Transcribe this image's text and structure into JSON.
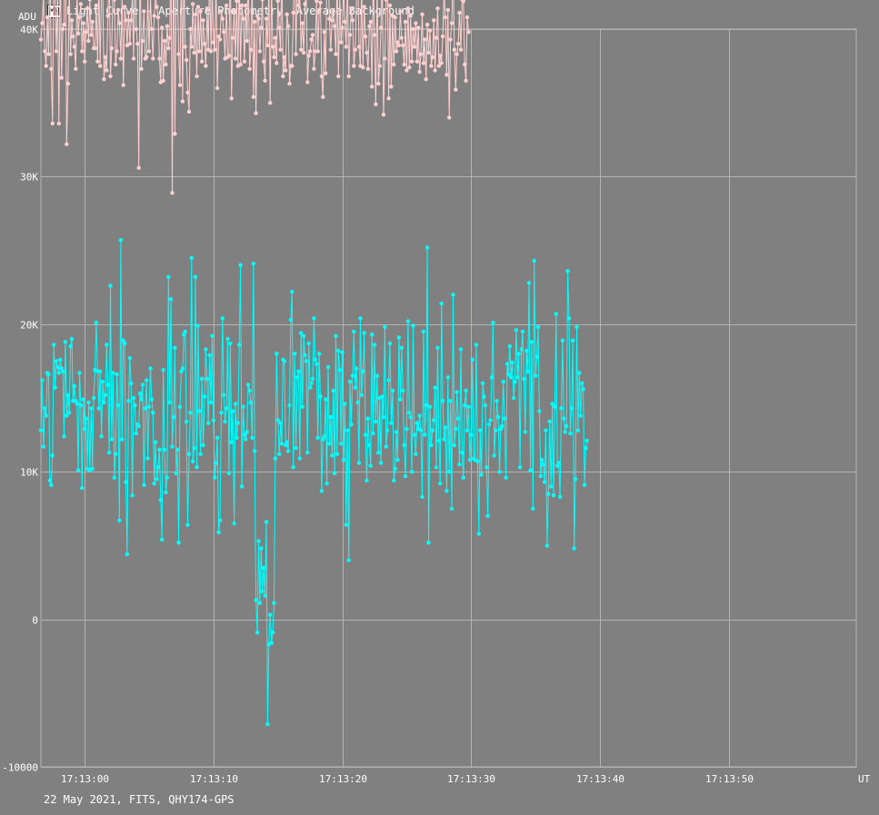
{
  "window": {
    "title": "Light Curve - Aperture Photometry, Average Background",
    "icon": "light-curve-app-icon"
  },
  "footer": {
    "caption": "22 May 2021, FITS, QHY174-GPS"
  },
  "colors": {
    "background": "#808080",
    "grid": "#b4b4b4",
    "target_series": "#00ffff",
    "comparison_series": "#ffd0d0"
  },
  "chart_data": {
    "type": "line",
    "ylabel": "ADU",
    "xlabel": "UT",
    "ylim": [
      -10000,
      40000
    ],
    "xlim": [
      "17:12:56.6",
      "17:13:59.9"
    ],
    "yticks": [
      {
        "value": 40000,
        "label": "40K"
      },
      {
        "value": 30000,
        "label": "30K"
      },
      {
        "value": 20000,
        "label": "20K"
      },
      {
        "value": 10000,
        "label": "10K"
      },
      {
        "value": 0,
        "label": "0"
      },
      {
        "value": -10000,
        "label": "-10000"
      }
    ],
    "xticks": [
      "17:13:00",
      "17:13:10",
      "17:13:20",
      "17:13:30",
      "17:13:40",
      "17:13:50"
    ],
    "grid": true,
    "sample_interval_s": 0.1,
    "series": [
      {
        "role": "comparison",
        "values": [
          39300,
          40400,
          42200,
          38500,
          37500,
          40800,
          38300,
          45600,
          37300,
          33600,
          44100,
          42100,
          38500,
          42400,
          33600,
          44800,
          36700,
          40000,
          40300,
          48800,
          32200,
          36300,
          42700,
          38300,
          40600,
          39500,
          38800,
          37300,
          42400,
          39700,
          40800,
          41700,
          38500,
          40400,
          37800,
          39800,
          41400,
          39200,
          42000,
          39600,
          40500,
          38700,
          38700,
          41600,
          37800,
          43500,
          37500,
          42400,
          42600,
          36600,
          38100,
          37200,
          40900,
          44100,
          36800,
          38700,
          43100,
          42000,
          37600,
          38500,
          41300,
          40400,
          38000,
          42300,
          36200,
          41500,
          40600,
          38900,
          41100,
          39000,
          40600,
          42100,
          38000,
          45400,
          40000,
          39000,
          30600,
          46300,
          37300,
          39200,
          41200,
          38000,
          38100,
          42200,
          38500,
          42100,
          40000,
          38000,
          40900,
          42200,
          41500,
          40800,
          38000,
          36400,
          40100,
          36500,
          39200,
          37600,
          40200,
          38700,
          39400,
          45200,
          28900,
          48200,
          32900,
          42900,
          42800,
          38300,
          36200,
          44600,
          35100,
          44600,
          38800,
          37900,
          35700,
          34400,
          40000,
          38800,
          41700,
          38400,
          41000,
          36800,
          41500,
          38500,
          41200,
          37800,
          40600,
          39000,
          37500,
          41400,
          38600,
          44300,
          38500,
          42600,
          39100,
          38600,
          43500,
          36000,
          39500,
          39300,
          41200,
          40700,
          39800,
          38000,
          41600,
          38100,
          38200,
          45200,
          35300,
          39400,
          41200,
          38000,
          41900,
          37500,
          43700,
          37600,
          41600,
          40700,
          37800,
          41600,
          39200,
          44000,
          37300,
          38600,
          43200,
          35400,
          40500,
          34300,
          40900,
          40700,
          38500,
          40100,
          42000,
          37800,
          36500,
          40700,
          38900,
          43000,
          35000,
          42800,
          38800,
          38100,
          39400,
          37700,
          41900,
          40100,
          38600,
          44900,
          36800,
          38100,
          37200,
          41000,
          40200,
          36300,
          37500,
          37500,
          41100,
          44700,
          38300,
          43900,
          41600,
          42100,
          38600,
          40400,
          38400,
          41700,
          42300,
          36400,
          38200,
          38500,
          39300,
          39600,
          37300,
          38500,
          41900,
          38500,
          41200,
          41800,
          36800,
          35400,
          39800,
          37000,
          43700,
          43900,
          40700,
          38600,
          40600,
          41200,
          40200,
          38300,
          43600,
          36800,
          42200,
          39100,
          40100,
          42800,
          40500,
          38800,
          43300,
          36800,
          39600,
          41400,
          40600,
          37500,
          38600,
          42100,
          44000,
          38800,
          37500,
          42900,
          37400,
          41500,
          39500,
          38400,
          37300,
          40200,
          40500,
          36100,
          43900,
          39600,
          34900,
          43000,
          36300,
          37500,
          40100,
          43800,
          34200,
          38000,
          42000,
          43600,
          35300,
          41600,
          36100,
          40900,
          37600,
          40800,
          38500,
          39100,
          38900,
          41200,
          39400,
          38900,
          37600,
          40500,
          37200,
          41400,
          37400,
          40900,
          37800,
          40000,
          38800,
          40400,
          37800,
          40100,
          37100,
          38300,
          41000,
          37700,
          39300,
          36600,
          40300,
          38400,
          39900,
          37500,
          38100,
          40600,
          37200,
          39400,
          41400,
          37500,
          38200,
          37700,
          39500,
          42500,
          40800,
          36900,
          41300,
          34000,
          39300,
          40400,
          43900,
          38600,
          35900,
          38300,
          39000,
          41100,
          38600,
          42000,
          41900,
          37600,
          36500,
          40800,
          39800
        ],
        "color": "#ffd0d0"
      },
      {
        "role": "target",
        "values": [
          12800,
          16200,
          11700,
          14300,
          13800,
          16700,
          16600,
          9400,
          9100,
          11100,
          18600,
          15700,
          17500,
          17100,
          16700,
          17600,
          17000,
          16800,
          12400,
          18800,
          13800,
          15200,
          14000,
          18500,
          19000,
          14800,
          15800,
          14800,
          14600,
          10100,
          16700,
          14500,
          8900,
          14900,
          12900,
          13600,
          10200,
          14700,
          10100,
          14300,
          10200,
          15000,
          16900,
          20100,
          16800,
          14300,
          16800,
          12400,
          16100,
          14700,
          15200,
          18600,
          15900,
          11300,
          22600,
          12200,
          16700,
          9600,
          11200,
          16600,
          14500,
          6700,
          25700,
          12200,
          18900,
          18700,
          9300,
          4400,
          14800,
          17700,
          16000,
          8400,
          15000,
          14500,
          12600,
          13200,
          13100,
          15300,
          14900,
          15900,
          9100,
          14300,
          16200,
          10900,
          14400,
          17000,
          14900,
          14000,
          9200,
          12000,
          9500,
          10300,
          11500,
          8100,
          5400,
          16900,
          11500,
          8600,
          9600,
          23200,
          14700,
          21700,
          11700,
          13700,
          18400,
          9900,
          11500,
          5200,
          14400,
          16800,
          17000,
          19300,
          19500,
          13400,
          6400,
          11200,
          14000,
          24500,
          10700,
          11600,
          23200,
          10300,
          19900,
          14100,
          11200,
          16300,
          11800,
          15100,
          18300,
          16300,
          13300,
          17900,
          14700,
          19200,
          13500,
          9600,
          10600,
          12300,
          5900,
          6700,
          14000,
          20400,
          15200,
          13400,
          14300,
          19000,
          9900,
          18700,
          12000,
          14100,
          6500,
          14600,
          12300,
          13300,
          18600,
          24000,
          9000,
          14400,
          12500,
          12200,
          12700,
          15900,
          15500,
          14700,
          12300,
          24100,
          11400,
          1300,
          -900,
          5300,
          1100,
          4800,
          1900,
          3500,
          1600,
          6600,
          -7100,
          -1700,
          300,
          -1600,
          -900,
          1100,
          10900,
          18000,
          13500,
          11200,
          13300,
          11900,
          17600,
          17500,
          11800,
          12000,
          11400,
          14500,
          20300,
          22200,
          10300,
          18000,
          11600,
          16400,
          16800,
          10900,
          19400,
          14400,
          19200,
          17900,
          17500,
          11300,
          18700,
          15700,
          16000,
          16300,
          20400,
          17600,
          17300,
          12300,
          18000,
          15100,
          8700,
          12200,
          12400,
          14900,
          9200,
          17100,
          11900,
          13700,
          11100,
          15500,
          9900,
          19200,
          11200,
          18200,
          16900,
          11900,
          18100,
          10800,
          14600,
          6400,
          12800,
          4000,
          16100,
          13200,
          16500,
          19500,
          15700,
          17000,
          14700,
          10600,
          20400,
          15200,
          16800,
          19400,
          12500,
          9400,
          13600,
          11800,
          10400,
          19300,
          12600,
          18600,
          13400,
          16500,
          11300,
          15000,
          10600,
          15100,
          13700,
          19800,
          11700,
          12800,
          16200,
          18700,
          13300,
          15500,
          9400,
          10200,
          12700,
          10800,
          19100,
          14900,
          18400,
          15500,
          11800,
          9700,
          12900,
          20200,
          14000,
          13700,
          10000,
          19900,
          12500,
          11200,
          13300,
          12900,
          13800,
          12800,
          8300,
          19500,
          12500,
          14500,
          25200,
          5200,
          14400,
          11800,
          12800,
          13500,
          15700,
          10300,
          18400,
          12100,
          9200,
          21400,
          14800,
          12200,
          13000,
          8700,
          16400,
          10000,
          14800,
          7500,
          22000,
          11800,
          12900,
          15400,
          13600,
          10500,
          18300,
          11300,
          9600,
          14500,
          15500,
          12800,
          14400,
          10800,
          12500,
          17600,
          10900,
          10800,
          18600,
          10700,
          5800,
          12800,
          9800,
          16000,
          15100,
          14500,
          10300,
          7000,
          13200,
          13500,
          16400,
          20100,
          11100,
          12800,
          14800,
          13700,
          10000,
          12900,
          13100,
          16100,
          13600,
          9600,
          17300,
          16600,
          18500,
          16400,
          17400,
          15000,
          16100,
          19600,
          16400,
          18000,
          10300,
          18300,
          19500,
          16300,
          12700,
          18200,
          16800,
          22800,
          10100,
          18800,
          7500,
          24300,
          16500,
          17800,
          19800,
          14100,
          9700,
          10800,
          10500,
          9300,
          12800,
          5000,
          8500,
          13400,
          9000,
          14600,
          8400,
          14400,
          20700,
          10400,
          10600,
          8300,
          14300,
          18900,
          13600,
          12700,
          13100,
          23600,
          20400,
          12600,
          14300,
          18900,
          4800,
          9500,
          19800,
          12800,
          16700,
          13800,
          16000,
          15600,
          9100,
          11600,
          12100
        ],
        "color": "#00ffff"
      }
    ]
  }
}
